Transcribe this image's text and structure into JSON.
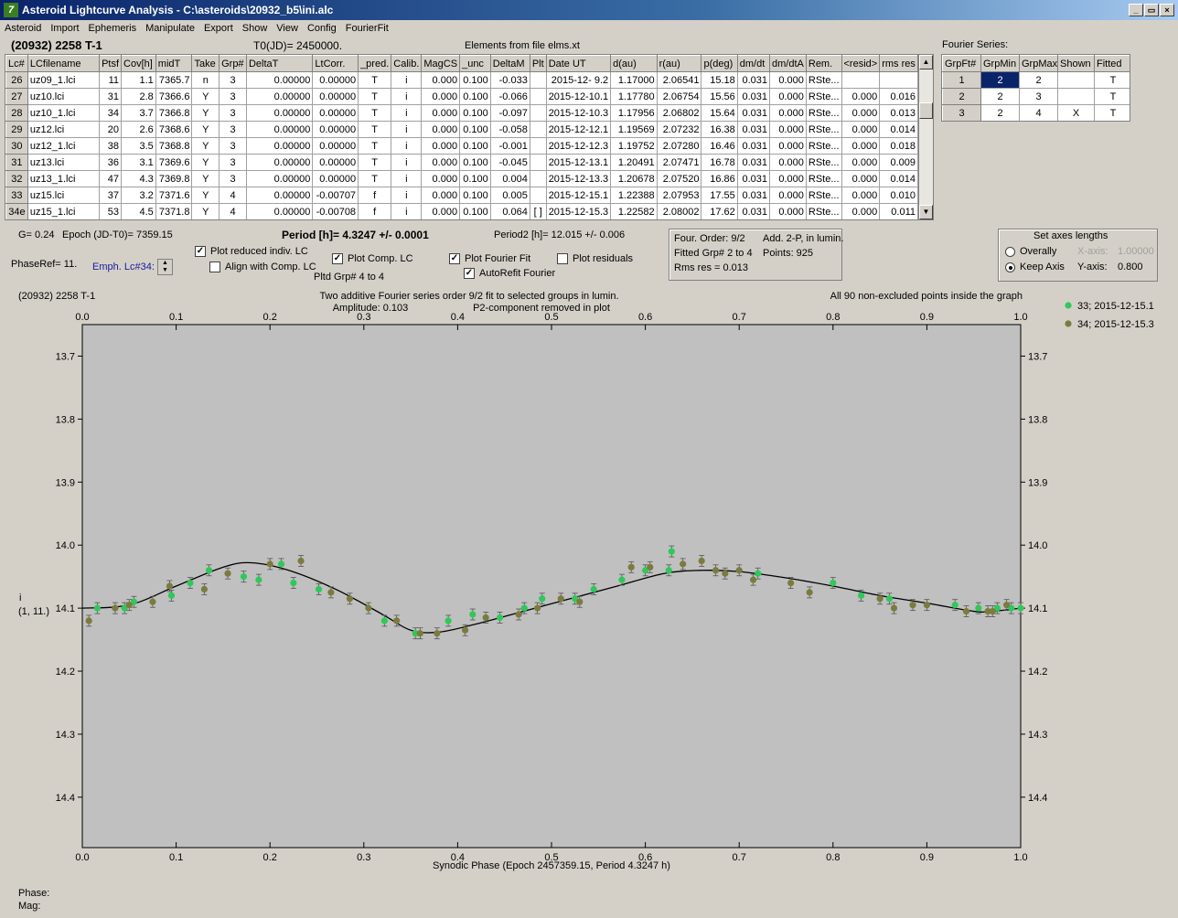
{
  "window": {
    "title": "Asteroid Lightcurve Analysis - C:\\asteroids\\20932_b5\\ini.alc",
    "icon": "app-logo-icon",
    "buttons": [
      "_",
      "▭",
      "×"
    ]
  },
  "menu": [
    "Asteroid",
    "Import",
    "Ephemeris",
    "Manipulate",
    "Export",
    "Show",
    "View",
    "Config",
    "FourierFit"
  ],
  "header": {
    "object": "(20932) 2258 T-1",
    "t0": "T0(JD)= 2450000.",
    "elements": "Elements from file elms.xt",
    "fourier_label": "Fourier Series:"
  },
  "lc_table": {
    "columns": [
      "Lc#",
      "LCfilename",
      "Ptsf",
      "Cov[h]",
      "midT",
      "Take",
      "Grp#",
      "DeltaT",
      "LtCorr.",
      "_pred.",
      "Calib.",
      "MagCS",
      "_unc",
      "DeltaM",
      "Plt",
      "Date UT",
      "d(au)",
      "r(au)",
      "p(deg)",
      "dm/dt",
      "dm/dtA",
      "Rem.",
      "<resid>",
      "rms res"
    ],
    "rows": [
      [
        "26",
        "uz09_1.lci",
        "11",
        "1.1",
        "7365.7",
        "n",
        "3",
        "0.00000",
        "0.00000",
        "T",
        "i",
        "0.000",
        "0.100",
        "-0.033",
        "",
        "2015-12- 9.2",
        "1.17000",
        "2.06541",
        "15.18",
        "0.031",
        "0.000",
        "RSte...",
        "",
        ""
      ],
      [
        "27",
        "uz10.lci",
        "31",
        "2.8",
        "7366.6",
        "Y",
        "3",
        "0.00000",
        "0.00000",
        "T",
        "i",
        "0.000",
        "0.100",
        "-0.066",
        "",
        "2015-12-10.1",
        "1.17780",
        "2.06754",
        "15.56",
        "0.031",
        "0.000",
        "RSte...",
        "0.000",
        "0.016"
      ],
      [
        "28",
        "uz10_1.lci",
        "34",
        "3.7",
        "7366.8",
        "Y",
        "3",
        "0.00000",
        "0.00000",
        "T",
        "i",
        "0.000",
        "0.100",
        "-0.097",
        "",
        "2015-12-10.3",
        "1.17956",
        "2.06802",
        "15.64",
        "0.031",
        "0.000",
        "RSte...",
        "0.000",
        "0.013"
      ],
      [
        "29",
        "uz12.lci",
        "20",
        "2.6",
        "7368.6",
        "Y",
        "3",
        "0.00000",
        "0.00000",
        "T",
        "i",
        "0.000",
        "0.100",
        "-0.058",
        "",
        "2015-12-12.1",
        "1.19569",
        "2.07232",
        "16.38",
        "0.031",
        "0.000",
        "RSte...",
        "0.000",
        "0.014"
      ],
      [
        "30",
        "uz12_1.lci",
        "38",
        "3.5",
        "7368.8",
        "Y",
        "3",
        "0.00000",
        "0.00000",
        "T",
        "i",
        "0.000",
        "0.100",
        "-0.001",
        "",
        "2015-12-12.3",
        "1.19752",
        "2.07280",
        "16.46",
        "0.031",
        "0.000",
        "RSte...",
        "0.000",
        "0.018"
      ],
      [
        "31",
        "uz13.lci",
        "36",
        "3.1",
        "7369.6",
        "Y",
        "3",
        "0.00000",
        "0.00000",
        "T",
        "i",
        "0.000",
        "0.100",
        "-0.045",
        "",
        "2015-12-13.1",
        "1.20491",
        "2.07471",
        "16.78",
        "0.031",
        "0.000",
        "RSte...",
        "0.000",
        "0.009"
      ],
      [
        "32",
        "uz13_1.lci",
        "47",
        "4.3",
        "7369.8",
        "Y",
        "3",
        "0.00000",
        "0.00000",
        "T",
        "i",
        "0.000",
        "0.100",
        "0.004",
        "",
        "2015-12-13.3",
        "1.20678",
        "2.07520",
        "16.86",
        "0.031",
        "0.000",
        "RSte...",
        "0.000",
        "0.014"
      ],
      [
        "33",
        "uz15.lci",
        "37",
        "3.2",
        "7371.6",
        "Y",
        "4",
        "0.00000",
        "-0.00707",
        "f",
        "i",
        "0.000",
        "0.100",
        "0.005",
        "",
        "2015-12-15.1",
        "1.22388",
        "2.07953",
        "17.55",
        "0.031",
        "0.000",
        "RSte...",
        "0.000",
        "0.010"
      ],
      [
        "34e",
        "uz15_1.lci",
        "53",
        "4.5",
        "7371.8",
        "Y",
        "4",
        "0.00000",
        "-0.00708",
        "f",
        "i",
        "0.000",
        "0.100",
        "0.064",
        "[ ]",
        "2015-12-15.3",
        "1.22582",
        "2.08002",
        "17.62",
        "0.031",
        "0.000",
        "RSte...",
        "0.000",
        "0.011"
      ]
    ]
  },
  "fourier_table": {
    "columns": [
      "GrpFt#",
      "GrpMin",
      "GrpMax",
      "Shown",
      "Fitted"
    ],
    "rows": [
      [
        "1",
        "2",
        "2",
        "",
        "T"
      ],
      [
        "2",
        "2",
        "3",
        "",
        "T"
      ],
      [
        "3",
        "2",
        "4",
        "X",
        "T"
      ]
    ]
  },
  "info": {
    "g": "G= 0.24",
    "epoch": "Epoch (JD-T0)= 7359.15",
    "phaseref": "PhaseRef= 11.",
    "emph": "Emph. Lc#34:",
    "period": "Period [h]= 4.3247 +/- 0.0001",
    "period2": "Period2 [h]= 12.015 +/- 0.006",
    "pltd": "Pltd Grp#  4  to   4"
  },
  "checkboxes": [
    {
      "label": "Plot reduced indiv. LC",
      "checked": true
    },
    {
      "label": "Align with Comp. LC",
      "checked": false
    },
    {
      "label": "Plot Comp. LC",
      "checked": true
    },
    {
      "label": "Plot Fourier Fit",
      "checked": true
    },
    {
      "label": "AutoRefit Fourier",
      "checked": true
    },
    {
      "label": "Plot residuals",
      "checked": false
    }
  ],
  "fit_box": {
    "l1a": "Four. Order:  9/2",
    "l1b": "Add. 2-P, in lumin.",
    "l2a": "Fitted Grp# 2 to 4",
    "l2b": "Points: 925",
    "l3": "Rms res      = 0.013"
  },
  "axes_box": {
    "title": "Set axes lengths",
    "overally": "Overally",
    "keep": "Keep Axis",
    "xaxis": "X-axis:",
    "xval": "1.00000",
    "yaxis": "Y-axis:",
    "yval": "0.800",
    "selected": "Keep Axis"
  },
  "plot": {
    "obj": "(20932) 2258 T-1",
    "desc1": "Two additive Fourier series order 9/2 fit to selected groups in lumin.",
    "amp": "Amplitude: 0.103",
    "p2": "P2-component removed in plot",
    "allpts": "All 90 non-excluded points inside the graph",
    "ylab1": "i",
    "ylab2": "(1, 11.)",
    "xlabel": "Synodic Phase (Epoch 2457359.15, Period 4.3247 h)",
    "legend": [
      {
        "name": "33; 2015-12-15.1",
        "color": "#2fc85a"
      },
      {
        "name": "34; 2015-12-15.3",
        "color": "#7b7b3e"
      }
    ],
    "colors": {
      "bg": "#c0c0c0",
      "curve": "#000000"
    }
  },
  "chart_data": {
    "type": "scatter",
    "xlim": [
      0.0,
      1.0
    ],
    "ylim": [
      14.47,
      13.68
    ],
    "xticks": [
      "0.0",
      "0.1",
      "0.2",
      "0.3",
      "0.4",
      "0.5",
      "0.6",
      "0.7",
      "0.8",
      "0.9",
      "1.0"
    ],
    "yticks": [
      "13.7",
      "13.8",
      "13.9",
      "14.0",
      "14.1",
      "14.2",
      "14.3",
      "14.4"
    ],
    "y_inverted": true,
    "series": [
      {
        "name": "33; 2015-12-15.1",
        "color": "#2fc85a",
        "points": [
          [
            0.016,
            14.1
          ],
          [
            0.045,
            14.1
          ],
          [
            0.055,
            14.09
          ],
          [
            0.095,
            14.08
          ],
          [
            0.115,
            14.06
          ],
          [
            0.135,
            14.04
          ],
          [
            0.172,
            14.05
          ],
          [
            0.188,
            14.055
          ],
          [
            0.212,
            14.03
          ],
          [
            0.225,
            14.06
          ],
          [
            0.252,
            14.07
          ],
          [
            0.322,
            14.12
          ],
          [
            0.355,
            14.14
          ],
          [
            0.39,
            14.12
          ],
          [
            0.416,
            14.11
          ],
          [
            0.445,
            14.115
          ],
          [
            0.471,
            14.1
          ],
          [
            0.49,
            14.085
          ],
          [
            0.525,
            14.085
          ],
          [
            0.545,
            14.07
          ],
          [
            0.575,
            14.055
          ],
          [
            0.6,
            14.04
          ],
          [
            0.625,
            14.04
          ],
          [
            0.628,
            14.01
          ],
          [
            0.72,
            14.045
          ],
          [
            0.8,
            14.06
          ],
          [
            0.83,
            14.08
          ],
          [
            0.86,
            14.085
          ],
          [
            0.93,
            14.095
          ],
          [
            0.955,
            14.1
          ],
          [
            0.975,
            14.1
          ],
          [
            0.99,
            14.1
          ],
          [
            1.0,
            14.1
          ]
        ]
      },
      {
        "name": "34; 2015-12-15.3",
        "color": "#7b7b3e",
        "points": [
          [
            0.007,
            14.12
          ],
          [
            0.035,
            14.1
          ],
          [
            0.05,
            14.095
          ],
          [
            0.075,
            14.09
          ],
          [
            0.093,
            14.065
          ],
          [
            0.13,
            14.07
          ],
          [
            0.155,
            14.045
          ],
          [
            0.2,
            14.03
          ],
          [
            0.233,
            14.025
          ],
          [
            0.265,
            14.075
          ],
          [
            0.285,
            14.085
          ],
          [
            0.305,
            14.1
          ],
          [
            0.335,
            14.12
          ],
          [
            0.36,
            14.14
          ],
          [
            0.378,
            14.14
          ],
          [
            0.408,
            14.135
          ],
          [
            0.43,
            14.115
          ],
          [
            0.465,
            14.11
          ],
          [
            0.485,
            14.1
          ],
          [
            0.51,
            14.085
          ],
          [
            0.53,
            14.09
          ],
          [
            0.585,
            14.035
          ],
          [
            0.605,
            14.035
          ],
          [
            0.64,
            14.03
          ],
          [
            0.66,
            14.025
          ],
          [
            0.675,
            14.04
          ],
          [
            0.685,
            14.045
          ],
          [
            0.7,
            14.04
          ],
          [
            0.715,
            14.055
          ],
          [
            0.755,
            14.06
          ],
          [
            0.775,
            14.075
          ],
          [
            0.85,
            14.085
          ],
          [
            0.865,
            14.1
          ],
          [
            0.885,
            14.095
          ],
          [
            0.9,
            14.095
          ],
          [
            0.942,
            14.105
          ],
          [
            0.965,
            14.105
          ],
          [
            0.97,
            14.105
          ],
          [
            0.985,
            14.095
          ]
        ]
      }
    ],
    "fit_curve": [
      [
        0.0,
        14.1
      ],
      [
        0.05,
        14.095
      ],
      [
        0.1,
        14.065
      ],
      [
        0.15,
        14.035
      ],
      [
        0.18,
        14.028
      ],
      [
        0.22,
        14.04
      ],
      [
        0.27,
        14.07
      ],
      [
        0.32,
        14.11
      ],
      [
        0.35,
        14.135
      ],
      [
        0.38,
        14.138
      ],
      [
        0.42,
        14.125
      ],
      [
        0.47,
        14.105
      ],
      [
        0.52,
        14.085
      ],
      [
        0.57,
        14.065
      ],
      [
        0.62,
        14.045
      ],
      [
        0.66,
        14.04
      ],
      [
        0.7,
        14.042
      ],
      [
        0.75,
        14.052
      ],
      [
        0.8,
        14.065
      ],
      [
        0.85,
        14.08
      ],
      [
        0.9,
        14.092
      ],
      [
        0.95,
        14.105
      ],
      [
        0.97,
        14.105
      ],
      [
        1.0,
        14.1
      ]
    ]
  },
  "status": {
    "phase": "Phase:",
    "mag": "Mag:"
  }
}
